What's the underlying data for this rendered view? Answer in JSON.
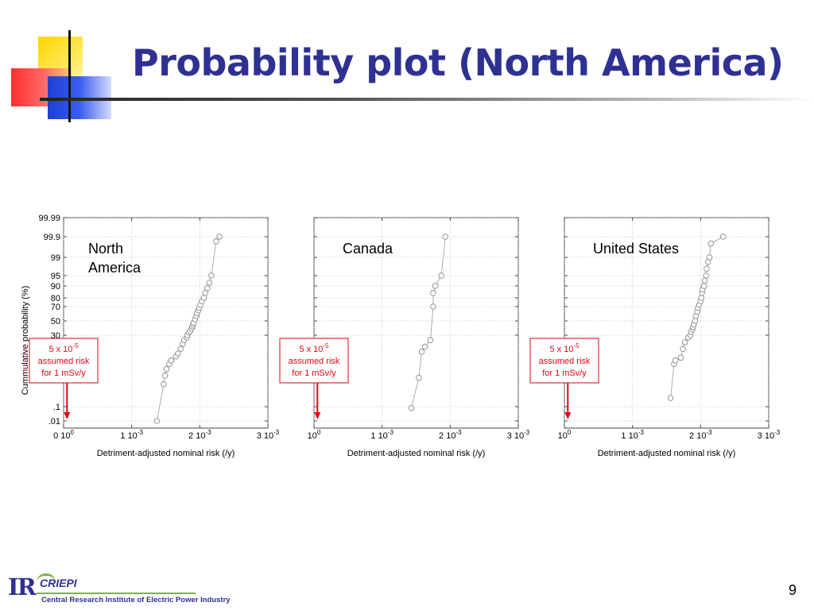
{
  "slide": {
    "title": "Probability plot (North America)",
    "page_number": "9",
    "logo": {
      "mark": "IR",
      "name": "CRIEPI",
      "full_name": "Central Research Institute of Electric Power Industry"
    }
  },
  "annotation": {
    "line1": "5 x 10",
    "exp": "-5",
    "line2": "assumed risk",
    "line3": "for 1 mSv/y",
    "value": 5e-05,
    "color": "#e30613"
  },
  "colors": {
    "title": "#2e3192",
    "annotation": "#e30613",
    "markers": "#888888"
  },
  "chart_data": [
    {
      "type": "scatter",
      "panel_label": "North\nAmerica",
      "xlabel": "Detriment-adjusted nominal risk (/y)",
      "ylabel": "Cummulative probability (%)",
      "xlim": [
        0,
        0.003
      ],
      "yscale": "probability",
      "y_ticks": [
        "99.99",
        "99.9",
        "99",
        "95",
        "90",
        "80",
        "70",
        "50",
        "30",
        ".1",
        ".01"
      ],
      "x_tick_labels": [
        {
          "mant": "0 10",
          "exp": "0"
        },
        {
          "mant": "1 10",
          "exp": "-3"
        },
        {
          "mant": "2 10",
          "exp": "-3"
        },
        {
          "mant": "3 10",
          "exp": "-3"
        }
      ],
      "grid": true,
      "x": [
        0.00137,
        0.00147,
        0.00149,
        0.00151,
        0.00155,
        0.00158,
        0.00165,
        0.00168,
        0.00172,
        0.00175,
        0.00177,
        0.00181,
        0.00182,
        0.00184,
        0.00186,
        0.00188,
        0.00189,
        0.0019,
        0.00191,
        0.00193,
        0.00195,
        0.00196,
        0.00198,
        0.00199,
        0.00201,
        0.00203,
        0.00206,
        0.00208,
        0.00211,
        0.00214,
        0.00217,
        0.00224,
        0.00229
      ],
      "y": [
        0.01,
        0.6,
        1.2,
        2.0,
        3.0,
        4.0,
        5.5,
        7,
        10,
        15,
        20,
        25,
        30,
        33,
        35,
        38,
        41,
        44,
        47,
        52,
        56,
        60,
        64,
        68,
        72,
        76,
        80,
        84,
        88,
        91.5,
        95,
        99.7,
        99.9
      ]
    },
    {
      "type": "scatter",
      "panel_label": "Canada",
      "xlabel": "Detriment-adjusted nominal risk (/y)",
      "ylabel": "",
      "xlim": [
        0,
        0.003
      ],
      "yscale": "probability",
      "y_ticks": [
        "99.99",
        "99.9",
        "99",
        "95",
        "90",
        "80",
        "70",
        "50",
        "30",
        ".1",
        ".01"
      ],
      "x_tick_labels": [
        {
          "mant": "10",
          "exp": "0"
        },
        {
          "mant": "1 10",
          "exp": "-3"
        },
        {
          "mant": "2 10",
          "exp": "-3"
        },
        {
          "mant": "3 10",
          "exp": "-3"
        }
      ],
      "grid": true,
      "x": [
        0.00143,
        0.00154,
        0.00158,
        0.00163,
        0.00171,
        0.00175,
        0.00175,
        0.00178,
        0.00187,
        0.00193
      ],
      "y": [
        0.08,
        1.0,
        8,
        12,
        20,
        70,
        84,
        90,
        95,
        99.9
      ]
    },
    {
      "type": "scatter",
      "panel_label": "United States",
      "xlabel": "Detriment-adjusted nominal risk (/y)",
      "ylabel": "",
      "xlim": [
        0,
        0.003
      ],
      "yscale": "probability",
      "y_ticks": [
        "99.99",
        "99.9",
        "99",
        "95",
        "90",
        "80",
        "70",
        "50",
        "30",
        ".1",
        ".01"
      ],
      "x_tick_labels": [
        {
          "mant": "10",
          "exp": "0"
        },
        {
          "mant": "1 10",
          "exp": "-3"
        },
        {
          "mant": "2 10",
          "exp": "-3"
        },
        {
          "mant": "3 10",
          "exp": "-3"
        }
      ],
      "grid": true,
      "x": [
        0.00156,
        0.00161,
        0.00163,
        0.00171,
        0.00174,
        0.00177,
        0.00182,
        0.00185,
        0.00186,
        0.00188,
        0.00189,
        0.0019,
        0.00192,
        0.00193,
        0.00195,
        0.00196,
        0.00198,
        0.002,
        0.00201,
        0.00202,
        0.00203,
        0.00205,
        0.00206,
        0.00208,
        0.00209,
        0.00211,
        0.00213,
        0.00215,
        0.00233
      ],
      "y": [
        0.2,
        3.0,
        4.0,
        5.0,
        10,
        17,
        25,
        30,
        34,
        37,
        40,
        44,
        50,
        56,
        62,
        68,
        72,
        76,
        80,
        84,
        87,
        90,
        92.5,
        95,
        96.5,
        98,
        99,
        99.6,
        99.9
      ]
    }
  ]
}
